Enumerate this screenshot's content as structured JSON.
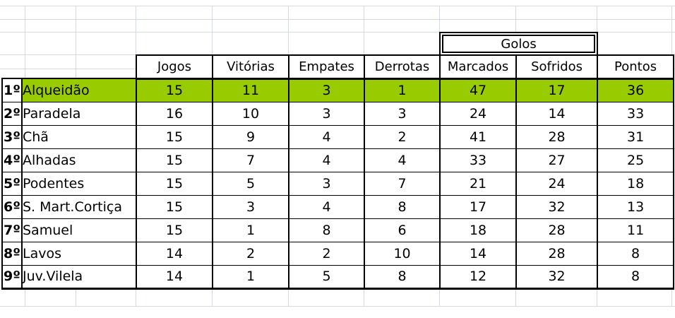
{
  "sheet": {
    "background_color": "#ffffff",
    "gridline_color": "#d5dae2",
    "border_color": "#000000"
  },
  "table": {
    "group_header": "Golos",
    "group_header_spans": [
      "Marcados",
      "Sofridos"
    ],
    "columns": [
      "Jogos",
      "Vitórias",
      "Empates",
      "Derrotas",
      "Marcados",
      "Sofridos",
      "Pontos"
    ],
    "highlight_color": "#99CC00",
    "rows": [
      {
        "rank": "1º",
        "club": "Alqueidão",
        "values": [
          15,
          11,
          3,
          1,
          47,
          17,
          36
        ],
        "highlight": true
      },
      {
        "rank": "2º",
        "club": "Paradela",
        "values": [
          16,
          10,
          3,
          3,
          24,
          14,
          33
        ],
        "highlight": false
      },
      {
        "rank": "3º",
        "club": "Chã",
        "values": [
          15,
          9,
          4,
          2,
          41,
          28,
          31
        ],
        "highlight": false
      },
      {
        "rank": "4º",
        "club": "Alhadas",
        "values": [
          15,
          7,
          4,
          4,
          33,
          27,
          25
        ],
        "highlight": false
      },
      {
        "rank": "5º",
        "club": "Podentes",
        "values": [
          15,
          5,
          3,
          7,
          21,
          24,
          18
        ],
        "highlight": false
      },
      {
        "rank": "6º",
        "club": "S. Mart.Cortiça",
        "values": [
          15,
          3,
          4,
          8,
          17,
          32,
          13
        ],
        "highlight": false
      },
      {
        "rank": "7º",
        "club": "Samuel",
        "values": [
          15,
          1,
          8,
          6,
          18,
          28,
          11
        ],
        "highlight": false
      },
      {
        "rank": "8º",
        "club": "Lavos",
        "values": [
          14,
          2,
          2,
          10,
          14,
          28,
          8
        ],
        "highlight": false
      },
      {
        "rank": "9º",
        "club": "Juv.Vilela",
        "values": [
          14,
          1,
          5,
          8,
          12,
          32,
          8
        ],
        "highlight": false
      }
    ]
  }
}
